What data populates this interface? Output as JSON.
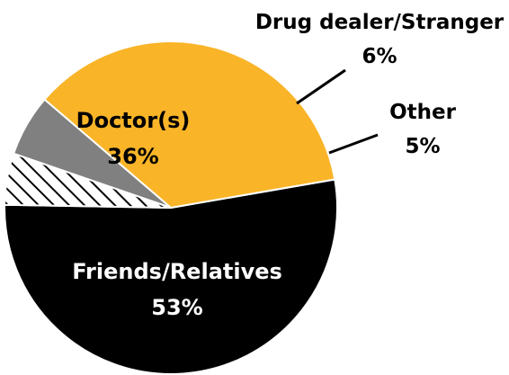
{
  "chart_data": {
    "type": "pie",
    "slices": [
      {
        "label": "Friends/Relatives",
        "value": 53,
        "value_label": "53%",
        "color": "#000000",
        "text_color": "#ffffff",
        "pattern": "solid"
      },
      {
        "label": "Doctor(s)",
        "value": 36,
        "value_label": "36%",
        "color": "#F9B428",
        "text_color": "#000000",
        "pattern": "solid"
      },
      {
        "label": "Drug dealer/Stranger",
        "value": 6,
        "value_label": "6%",
        "color": "#808080",
        "text_color": "#000000",
        "pattern": "solid"
      },
      {
        "label": "Other",
        "value": 5,
        "value_label": "5%",
        "color": "#ffffff",
        "text_color": "#000000",
        "pattern": "hatch"
      }
    ],
    "title": "",
    "legend": "none"
  }
}
